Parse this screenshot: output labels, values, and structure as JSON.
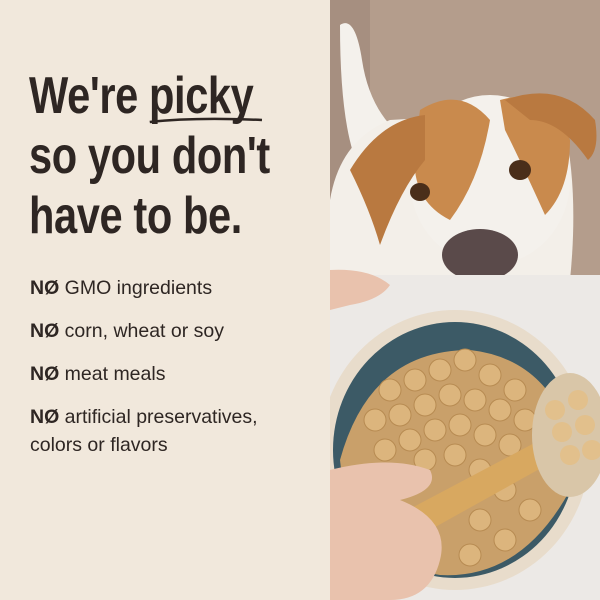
{
  "headline": {
    "line1_prefix": "We're ",
    "line1_emphasis": "picky",
    "line2": "so you don't",
    "line3": "have to be."
  },
  "list": {
    "prefix": "NØ",
    "items": [
      {
        "text": "GMO ingredients"
      },
      {
        "text": "corn, wheat or soy"
      },
      {
        "text": "meat meals"
      },
      {
        "text": "artificial preservatives,",
        "text2": "colors or flavors"
      }
    ]
  },
  "colors": {
    "background": "#f1e8dc",
    "text": "#2e2623",
    "bowl": "#3c5a66",
    "kibble": "#d9b27a"
  }
}
